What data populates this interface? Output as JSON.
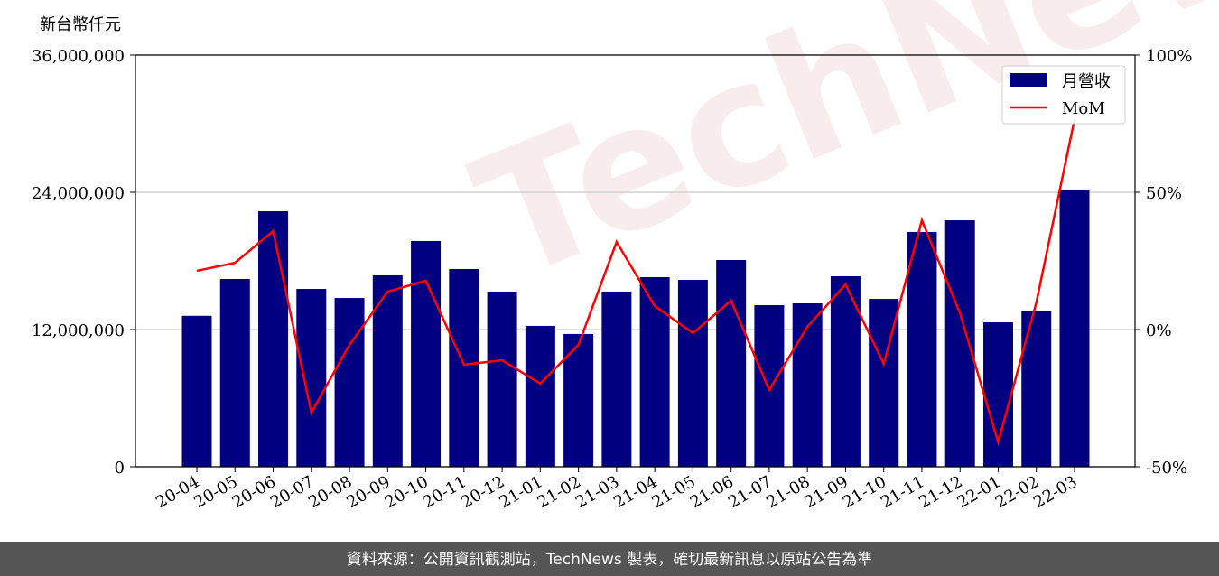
{
  "chart_data": {
    "type": "bar-line",
    "y_label": "新台幣仟元",
    "watermark": "TechNews",
    "footer": "資料來源：公開資訊觀測站，TechNews 製表，確切最新訊息以原站公告為準",
    "categories": [
      "20-04",
      "20-05",
      "20-06",
      "20-07",
      "20-08",
      "20-09",
      "20-10",
      "20-11",
      "20-12",
      "21-01",
      "21-02",
      "21-03",
      "21-04",
      "21-05",
      "21-06",
      "21-07",
      "21-08",
      "21-09",
      "21-10",
      "21-11",
      "21-12",
      "22-01",
      "22-02",
      "22-03"
    ],
    "series": [
      {
        "name": "月營收",
        "type": "bar",
        "color": "#000080",
        "axis": "y",
        "values": [
          13200000,
          16420000,
          22340000,
          15550000,
          14760000,
          16740000,
          19740000,
          17290000,
          15320000,
          12320000,
          11610000,
          15320000,
          16580000,
          16340000,
          18080000,
          14130000,
          14290000,
          16660000,
          14680000,
          20530000,
          21550000,
          12630000,
          13660000,
          24240000
        ]
      },
      {
        "name": "MoM",
        "type": "line",
        "color": "#ff0000",
        "axis": "y2",
        "values": [
          21.4,
          24.3,
          35.9,
          -30.3,
          -5.6,
          13.8,
          17.8,
          -12.8,
          -11.2,
          -19.7,
          -5.6,
          31.9,
          8.6,
          -1.3,
          10.5,
          -22,
          1,
          16.4,
          -12.5,
          39.8,
          5.9,
          -41.1,
          9.9,
          76.6
        ]
      }
    ],
    "ylim": [
      0,
      36000000
    ],
    "yticks": [
      {
        "value": 0,
        "label": "0"
      },
      {
        "value": 12000000,
        "label": "12,000,000"
      },
      {
        "value": 24000000,
        "label": "24,000,000"
      },
      {
        "value": 36000000,
        "label": "36,000,000"
      }
    ],
    "y2lim": [
      -50,
      100
    ],
    "y2ticks": [
      {
        "value": -50,
        "label": "-50%"
      },
      {
        "value": 0,
        "label": "0%"
      },
      {
        "value": 50,
        "label": "50%"
      },
      {
        "value": 100,
        "label": "100%"
      }
    ],
    "grid": true,
    "legend": "upper right"
  }
}
